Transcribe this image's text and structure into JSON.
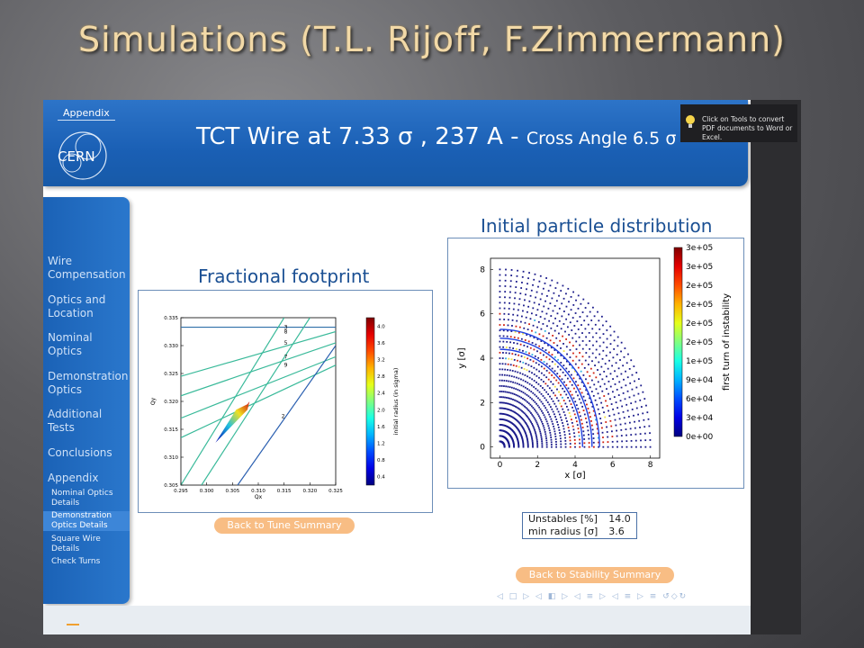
{
  "slide_title": "Simulations (T.L. Rijoff, F.Zimmermann)",
  "frame": {
    "section": "Appendix",
    "logo_text": "CERN",
    "title_main": "TCT Wire at 7.33 σ , 237 A",
    "title_dash": " - ",
    "title_small": "Cross Angle 6.5 σ"
  },
  "sidebar": {
    "items": [
      "Wire Compensation",
      "Optics and Location",
      "Nominal Optics",
      "Demonstration Optics",
      "Additional Tests",
      "Conclusions",
      "Appendix"
    ],
    "subitems": [
      "Nominal Optics Details",
      "Demonstration Optics Details",
      "Square Wire Details",
      "Check Turns"
    ],
    "active_subitem": "Demonstration Optics Details"
  },
  "footprint": {
    "title": "Fractional footprint",
    "button": "Back to Tune Summary"
  },
  "distribution": {
    "title": "Initial particle distribution",
    "button": "Back to Stability Summary"
  },
  "stats": {
    "rows": [
      {
        "label": "Unstables [%]",
        "value": "14.0"
      },
      {
        "label": "min radius [σ]",
        "value": "3.6"
      }
    ]
  },
  "tooltip": {
    "text": "Click on Tools to convert PDF documents to Word or Excel."
  },
  "nav_symbols": "◁ □ ▷ ◁ ◧ ▷ ◁ ≡ ▷ ◁ ≡ ▷ ≡ ↺◇↻",
  "chart_data": [
    {
      "type": "scatter",
      "title": "Fractional footprint",
      "xlabel": "Qx",
      "ylabel": "Qy",
      "xlim": [
        0.295,
        0.325
      ],
      "ylim": [
        0.305,
        0.335
      ],
      "xticks": [
        "0.295",
        "0.300",
        "0.305",
        "0.310",
        "0.315",
        "0.320",
        "0.325"
      ],
      "yticks": [
        "0.305",
        "0.310",
        "0.315",
        "0.320",
        "0.325",
        "0.330",
        "0.335"
      ],
      "resonance_lines": [
        {
          "order": "3",
          "x1": 0.295,
          "y1": 0.3333,
          "x2": 0.325,
          "y2": 0.3333
        },
        {
          "order": "8",
          "x1": 0.295,
          "y1": 0.3245,
          "x2": 0.325,
          "y2": 0.3325
        },
        {
          "order": "5",
          "x1": 0.295,
          "y1": 0.321,
          "x2": 0.325,
          "y2": 0.3305
        },
        {
          "order": "7",
          "x1": 0.295,
          "y1": 0.317,
          "x2": 0.325,
          "y2": 0.328
        },
        {
          "order": "9",
          "x1": 0.295,
          "y1": 0.3135,
          "x2": 0.325,
          "y2": 0.3265
        },
        {
          "order": "",
          "x1": 0.299,
          "y1": 0.305,
          "x2": 0.32,
          "y2": 0.335
        },
        {
          "order": "2",
          "x1": 0.306,
          "y1": 0.305,
          "x2": 0.325,
          "y2": 0.33
        },
        {
          "order": "",
          "x1": 0.295,
          "y1": 0.305,
          "x2": 0.315,
          "y2": 0.335
        }
      ],
      "footprint_vertices": [
        [
          0.3017,
          0.3126
        ],
        [
          0.3057,
          0.3185
        ],
        [
          0.3079,
          0.3195
        ],
        [
          0.3083,
          0.32
        ],
        [
          0.3079,
          0.3185
        ]
      ],
      "colorbar": {
        "label": "initial radius (in sigma)",
        "ticks": [
          "0.4",
          "0.8",
          "1.2",
          "1.6",
          "2.0",
          "2.4",
          "2.8",
          "3.2",
          "3.6",
          "4.0"
        ]
      }
    },
    {
      "type": "scatter",
      "title": "Initial particle distribution",
      "xlabel": "x [σ]",
      "ylabel": "y [σ]",
      "xlim": [
        -0.5,
        8.5
      ],
      "ylim": [
        -0.5,
        8.5
      ],
      "xticks": [
        "0",
        "2",
        "4",
        "6",
        "8"
      ],
      "yticks": [
        "0",
        "2",
        "4",
        "6",
        "8"
      ],
      "grid_max_radius": 8,
      "unstable_region": {
        "r_min": 3.6,
        "r_max": 6.0
      },
      "colorbar": {
        "label": "first turn of instability",
        "ticks": [
          "0e+00",
          "3e+04",
          "6e+04",
          "9e+04",
          "1e+05",
          "2e+05",
          "2e+05",
          "2e+05",
          "2e+05",
          "3e+05",
          "3e+05"
        ]
      }
    }
  ],
  "colors": {
    "header": "#1a5fb4",
    "sidebar": "#2a77cc",
    "button": "#f8bd84",
    "title": "#f2d9a7"
  }
}
